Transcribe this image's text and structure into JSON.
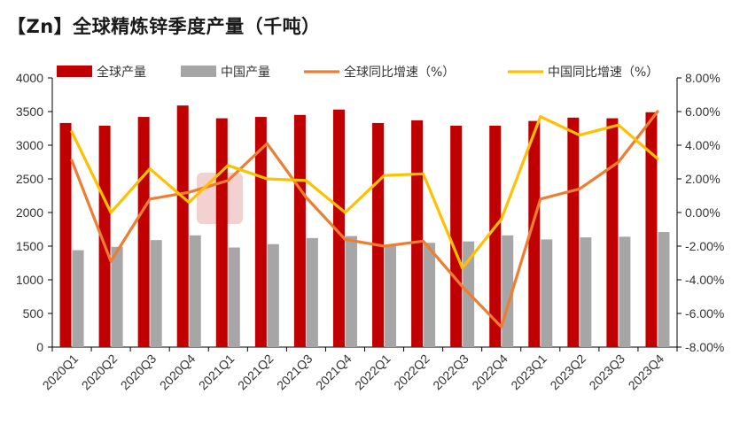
{
  "chart_data": {
    "type": "bar",
    "title": "【Zn】全球精炼锌季度产量（千吨）",
    "categories": [
      "2020Q1",
      "2020Q2",
      "2020Q3",
      "2020Q4",
      "2021Q1",
      "2021Q2",
      "2021Q3",
      "2021Q4",
      "2022Q1",
      "2022Q2",
      "2022Q3",
      "2022Q4",
      "2023Q1",
      "2023Q2",
      "2023Q3",
      "2023Q4"
    ],
    "series": [
      {
        "name": "全球产量",
        "kind": "bar",
        "axis": "left",
        "color": "#C00000",
        "values": [
          3330,
          3290,
          3420,
          3590,
          3400,
          3420,
          3450,
          3530,
          3330,
          3370,
          3290,
          3290,
          3360,
          3410,
          3400,
          3490
        ]
      },
      {
        "name": "中国产量",
        "kind": "bar",
        "axis": "left",
        "color": "#A6A6A6",
        "values": [
          1440,
          1490,
          1590,
          1660,
          1480,
          1530,
          1620,
          1650,
          1500,
          1550,
          1570,
          1660,
          1600,
          1630,
          1640,
          1710
        ]
      },
      {
        "name": "全球同比增速（%）",
        "kind": "line",
        "axis": "right",
        "color": "#ED7D31",
        "values": [
          3.1,
          -2.9,
          0.8,
          1.2,
          1.9,
          4.1,
          0.9,
          -1.6,
          -2.0,
          -1.7,
          -4.4,
          -6.8,
          0.8,
          1.4,
          3.0,
          6.0
        ]
      },
      {
        "name": "中国同比增速（%）",
        "kind": "line",
        "axis": "right",
        "color": "#FFC000",
        "values": [
          4.8,
          0.0,
          2.6,
          0.6,
          2.8,
          2.0,
          1.9,
          0.0,
          2.2,
          2.3,
          -3.3,
          -0.4,
          5.7,
          4.6,
          5.2,
          3.2
        ]
      }
    ],
    "ylim_left": [
      0,
      4000
    ],
    "yticks_left": [
      "0",
      "500",
      "1000",
      "1500",
      "2000",
      "2500",
      "3000",
      "3500",
      "4000"
    ],
    "ylim_right": [
      -8,
      8
    ],
    "yticks_right": [
      "-8.00%",
      "-6.00%",
      "-4.00%",
      "-2.00%",
      "0.00%",
      "2.00%",
      "4.00%",
      "6.00%",
      "8.00%"
    ],
    "legend_position": "top",
    "grid": false
  }
}
